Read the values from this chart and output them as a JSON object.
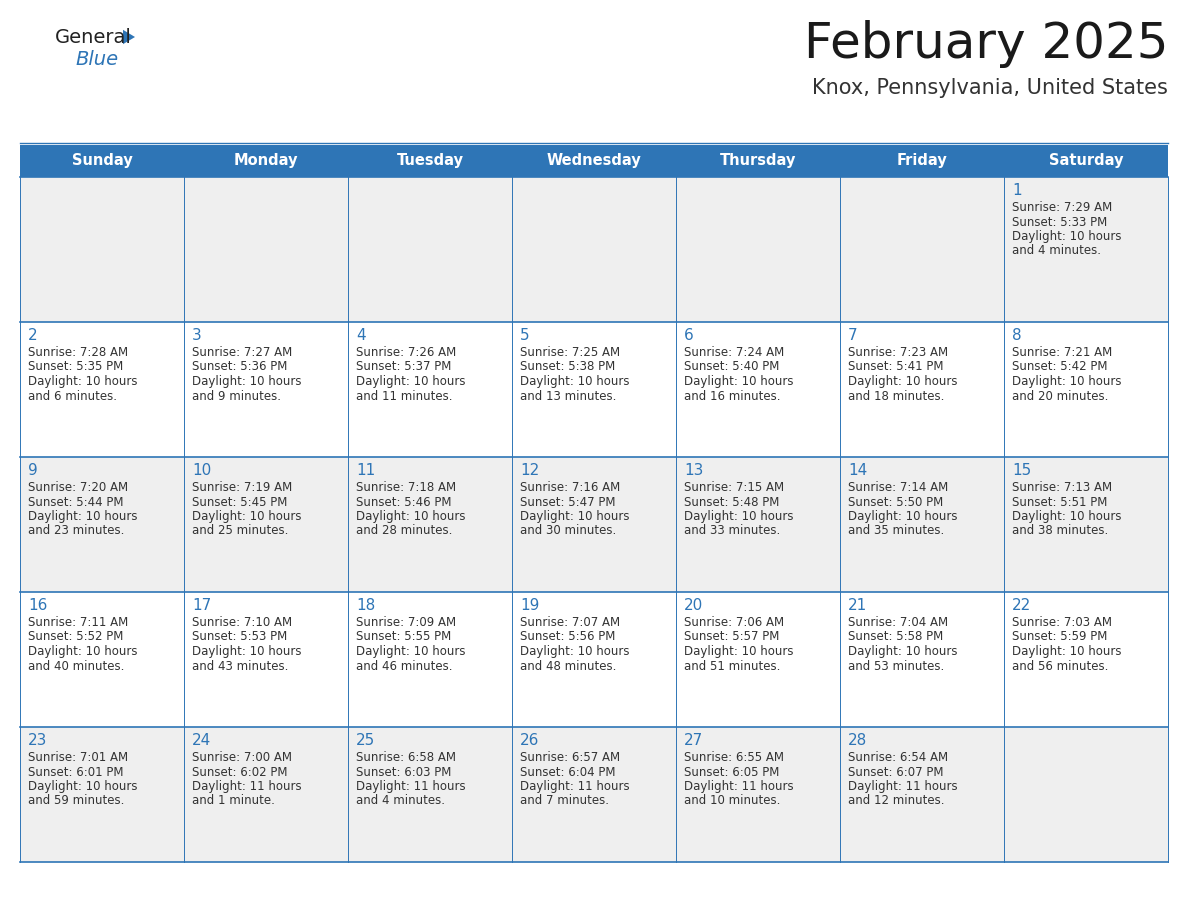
{
  "title": "February 2025",
  "subtitle": "Knox, Pennsylvania, United States",
  "header_bg": "#2E75B6",
  "header_text_color": "#FFFFFF",
  "cell_bg": "#FFFFFF",
  "row1_bg": "#EFEFEF",
  "border_color": "#2E75B6",
  "day_headers": [
    "Sunday",
    "Monday",
    "Tuesday",
    "Wednesday",
    "Thursday",
    "Friday",
    "Saturday"
  ],
  "title_color": "#1a1a1a",
  "subtitle_color": "#333333",
  "day_num_color": "#2E75B6",
  "cell_text_color": "#333333",
  "logo_general_color": "#222222",
  "logo_blue_color": "#2E75B6",
  "weeks": [
    [
      {
        "day": "",
        "lines": []
      },
      {
        "day": "",
        "lines": []
      },
      {
        "day": "",
        "lines": []
      },
      {
        "day": "",
        "lines": []
      },
      {
        "day": "",
        "lines": []
      },
      {
        "day": "",
        "lines": []
      },
      {
        "day": "1",
        "lines": [
          "Sunrise: 7:29 AM",
          "Sunset: 5:33 PM",
          "Daylight: 10 hours",
          "and 4 minutes."
        ]
      }
    ],
    [
      {
        "day": "2",
        "lines": [
          "Sunrise: 7:28 AM",
          "Sunset: 5:35 PM",
          "Daylight: 10 hours",
          "and 6 minutes."
        ]
      },
      {
        "day": "3",
        "lines": [
          "Sunrise: 7:27 AM",
          "Sunset: 5:36 PM",
          "Daylight: 10 hours",
          "and 9 minutes."
        ]
      },
      {
        "day": "4",
        "lines": [
          "Sunrise: 7:26 AM",
          "Sunset: 5:37 PM",
          "Daylight: 10 hours",
          "and 11 minutes."
        ]
      },
      {
        "day": "5",
        "lines": [
          "Sunrise: 7:25 AM",
          "Sunset: 5:38 PM",
          "Daylight: 10 hours",
          "and 13 minutes."
        ]
      },
      {
        "day": "6",
        "lines": [
          "Sunrise: 7:24 AM",
          "Sunset: 5:40 PM",
          "Daylight: 10 hours",
          "and 16 minutes."
        ]
      },
      {
        "day": "7",
        "lines": [
          "Sunrise: 7:23 AM",
          "Sunset: 5:41 PM",
          "Daylight: 10 hours",
          "and 18 minutes."
        ]
      },
      {
        "day": "8",
        "lines": [
          "Sunrise: 7:21 AM",
          "Sunset: 5:42 PM",
          "Daylight: 10 hours",
          "and 20 minutes."
        ]
      }
    ],
    [
      {
        "day": "9",
        "lines": [
          "Sunrise: 7:20 AM",
          "Sunset: 5:44 PM",
          "Daylight: 10 hours",
          "and 23 minutes."
        ]
      },
      {
        "day": "10",
        "lines": [
          "Sunrise: 7:19 AM",
          "Sunset: 5:45 PM",
          "Daylight: 10 hours",
          "and 25 minutes."
        ]
      },
      {
        "day": "11",
        "lines": [
          "Sunrise: 7:18 AM",
          "Sunset: 5:46 PM",
          "Daylight: 10 hours",
          "and 28 minutes."
        ]
      },
      {
        "day": "12",
        "lines": [
          "Sunrise: 7:16 AM",
          "Sunset: 5:47 PM",
          "Daylight: 10 hours",
          "and 30 minutes."
        ]
      },
      {
        "day": "13",
        "lines": [
          "Sunrise: 7:15 AM",
          "Sunset: 5:48 PM",
          "Daylight: 10 hours",
          "and 33 minutes."
        ]
      },
      {
        "day": "14",
        "lines": [
          "Sunrise: 7:14 AM",
          "Sunset: 5:50 PM",
          "Daylight: 10 hours",
          "and 35 minutes."
        ]
      },
      {
        "day": "15",
        "lines": [
          "Sunrise: 7:13 AM",
          "Sunset: 5:51 PM",
          "Daylight: 10 hours",
          "and 38 minutes."
        ]
      }
    ],
    [
      {
        "day": "16",
        "lines": [
          "Sunrise: 7:11 AM",
          "Sunset: 5:52 PM",
          "Daylight: 10 hours",
          "and 40 minutes."
        ]
      },
      {
        "day": "17",
        "lines": [
          "Sunrise: 7:10 AM",
          "Sunset: 5:53 PM",
          "Daylight: 10 hours",
          "and 43 minutes."
        ]
      },
      {
        "day": "18",
        "lines": [
          "Sunrise: 7:09 AM",
          "Sunset: 5:55 PM",
          "Daylight: 10 hours",
          "and 46 minutes."
        ]
      },
      {
        "day": "19",
        "lines": [
          "Sunrise: 7:07 AM",
          "Sunset: 5:56 PM",
          "Daylight: 10 hours",
          "and 48 minutes."
        ]
      },
      {
        "day": "20",
        "lines": [
          "Sunrise: 7:06 AM",
          "Sunset: 5:57 PM",
          "Daylight: 10 hours",
          "and 51 minutes."
        ]
      },
      {
        "day": "21",
        "lines": [
          "Sunrise: 7:04 AM",
          "Sunset: 5:58 PM",
          "Daylight: 10 hours",
          "and 53 minutes."
        ]
      },
      {
        "day": "22",
        "lines": [
          "Sunrise: 7:03 AM",
          "Sunset: 5:59 PM",
          "Daylight: 10 hours",
          "and 56 minutes."
        ]
      }
    ],
    [
      {
        "day": "23",
        "lines": [
          "Sunrise: 7:01 AM",
          "Sunset: 6:01 PM",
          "Daylight: 10 hours",
          "and 59 minutes."
        ]
      },
      {
        "day": "24",
        "lines": [
          "Sunrise: 7:00 AM",
          "Sunset: 6:02 PM",
          "Daylight: 11 hours",
          "and 1 minute."
        ]
      },
      {
        "day": "25",
        "lines": [
          "Sunrise: 6:58 AM",
          "Sunset: 6:03 PM",
          "Daylight: 11 hours",
          "and 4 minutes."
        ]
      },
      {
        "day": "26",
        "lines": [
          "Sunrise: 6:57 AM",
          "Sunset: 6:04 PM",
          "Daylight: 11 hours",
          "and 7 minutes."
        ]
      },
      {
        "day": "27",
        "lines": [
          "Sunrise: 6:55 AM",
          "Sunset: 6:05 PM",
          "Daylight: 11 hours",
          "and 10 minutes."
        ]
      },
      {
        "day": "28",
        "lines": [
          "Sunrise: 6:54 AM",
          "Sunset: 6:07 PM",
          "Daylight: 11 hours",
          "and 12 minutes."
        ]
      },
      {
        "day": "",
        "lines": []
      }
    ]
  ]
}
